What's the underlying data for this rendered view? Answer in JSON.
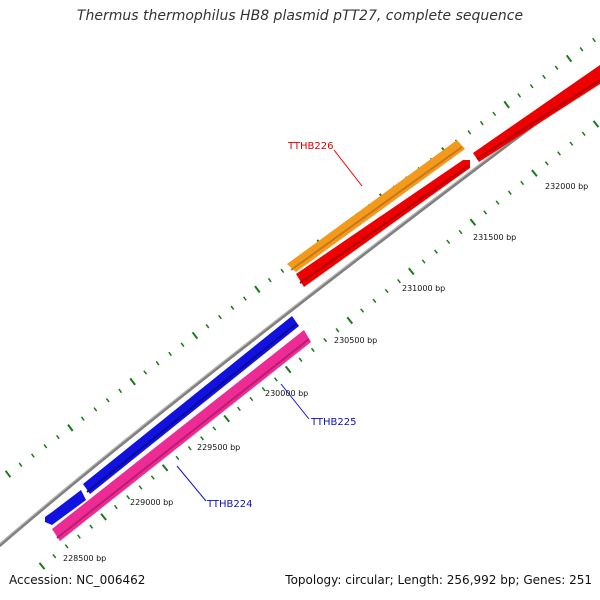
{
  "title": "Thermus thermophilus HB8 plasmid pTT27, complete sequence",
  "footer": {
    "accession": "Accession: NC_006462",
    "summary": "Topology: circular; Length: 256,992 bp; Genes: 251"
  },
  "colors": {
    "backbone": "#808080",
    "tick": "#1a7a1a",
    "red": "#ee0000",
    "orange": "#f39a1c",
    "blue": "#1212e0",
    "pink": "#ee2a95"
  },
  "tick_labels": [
    "228500 bp",
    "229000 bp",
    "229500 bp",
    "230000 bp",
    "230500 bp",
    "231000 bp",
    "231500 bp",
    "232000 bp"
  ],
  "genes": [
    {
      "name": "TTHB226",
      "label": "TTHB226",
      "color_key": "red",
      "strand": "forward"
    },
    {
      "name": "TTHB225",
      "label": "TTHB225",
      "color_key": "blue",
      "strand": "forward"
    },
    {
      "name": "TTHB224",
      "label": "TTHB224",
      "color_key": "blue",
      "strand": "reverse"
    }
  ]
}
